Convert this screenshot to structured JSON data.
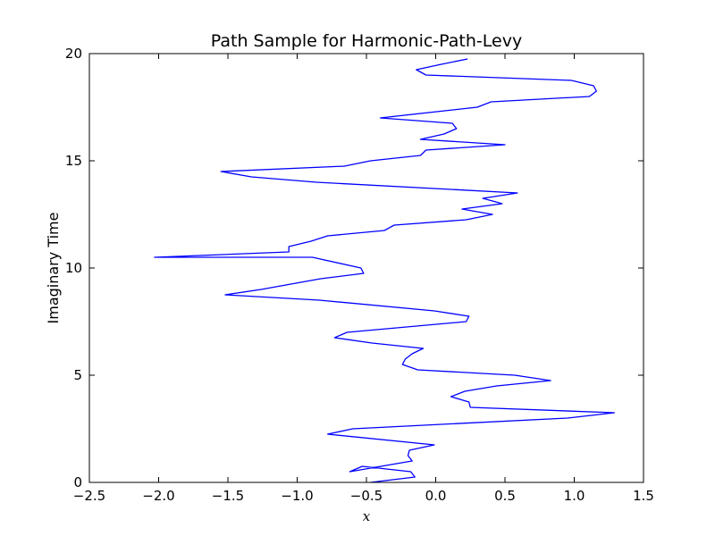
{
  "chart_data": {
    "type": "line",
    "title": "Path Sample for Harmonic-Path-Levy",
    "xlabel": "x",
    "ylabel": "Imaginary Time",
    "xlim": [
      -2.5,
      1.5
    ],
    "ylim": [
      0,
      20
    ],
    "xticks": [
      "−2.5",
      "−2.0",
      "−1.5",
      "−1.0",
      "−0.5",
      "0.0",
      "0.5",
      "1.0",
      "1.5"
    ],
    "yticks": [
      "0",
      "5",
      "10",
      "15",
      "20"
    ],
    "grid": false,
    "line_color": "#0000ff",
    "series": [
      {
        "x": [
          -0.47,
          -0.15,
          -0.18,
          -0.53,
          -0.62,
          -0.17,
          -0.2,
          -0.19,
          -0.01,
          -0.78,
          -0.6,
          0.95,
          1.29,
          0.25,
          0.24,
          0.11,
          0.21,
          0.44,
          0.83,
          0.57,
          -0.13,
          -0.24,
          -0.22,
          -0.17,
          -0.09,
          -0.46,
          -0.73,
          -0.64,
          0.22,
          0.24,
          -0.01,
          -0.84,
          -1.52,
          -1.26,
          -0.83,
          -0.52,
          -0.54,
          -0.89,
          -2.03,
          -1.06,
          -1.06,
          -0.9,
          -0.78,
          -0.37,
          -0.3,
          0.22,
          0.41,
          0.19,
          0.48,
          0.34,
          0.59,
          -0.86,
          -1.33,
          -1.55,
          -0.66,
          -0.47,
          -0.11,
          -0.07,
          0.5,
          -0.11,
          0.06,
          0.15,
          0.12,
          -0.4,
          0.3,
          0.4,
          1.11,
          1.16,
          1.14,
          0.98,
          -0.07,
          -0.14,
          0.04,
          0.23
        ],
        "y": [
          0.0,
          0.25,
          0.5,
          0.75,
          0.5,
          1.0,
          1.25,
          1.5,
          1.75,
          2.25,
          2.5,
          3.0,
          3.25,
          3.5,
          3.75,
          4.0,
          4.25,
          4.5,
          4.75,
          5.0,
          5.25,
          5.5,
          5.75,
          6.0,
          6.25,
          6.5,
          6.75,
          7.0,
          7.5,
          7.75,
          8.0,
          8.5,
          8.75,
          9.0,
          9.5,
          9.75,
          10.0,
          10.5,
          10.5,
          10.75,
          11.0,
          11.25,
          11.5,
          11.75,
          12.0,
          12.25,
          12.5,
          12.75,
          13.0,
          13.25,
          13.5,
          14.0,
          14.25,
          14.5,
          14.75,
          15.0,
          15.25,
          15.5,
          15.75,
          16.0,
          16.25,
          16.5,
          16.75,
          17.0,
          17.5,
          17.75,
          18.0,
          18.25,
          18.5,
          18.75,
          19.0,
          19.25,
          19.5,
          19.75
        ]
      }
    ]
  }
}
